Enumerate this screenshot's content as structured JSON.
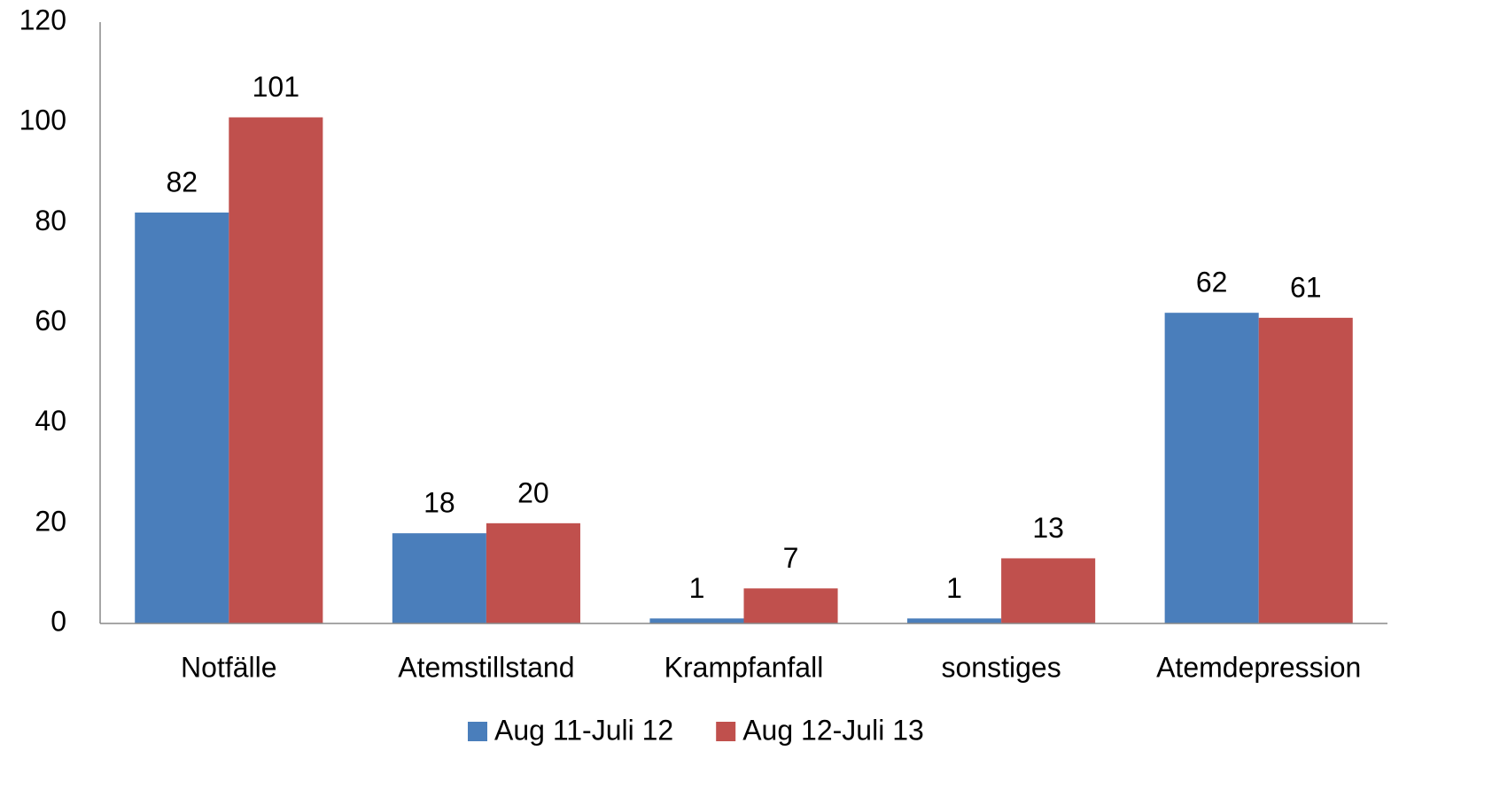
{
  "chart_data": {
    "type": "bar",
    "categories": [
      "Notfälle",
      "Atemstillstand",
      "Krampfanfall",
      "sonstiges",
      "Atemdepression"
    ],
    "series": [
      {
        "name": "Aug 11-Juli 12",
        "color": "#4a7ebb",
        "values": [
          82,
          18,
          1,
          1,
          62
        ]
      },
      {
        "name": "Aug 12-Juli 13",
        "color": "#c0504d",
        "values": [
          101,
          20,
          7,
          13,
          61
        ]
      }
    ],
    "ylim": [
      0,
      120
    ],
    "yticks": [
      0,
      20,
      40,
      60,
      80,
      100,
      120
    ],
    "grid": false,
    "legend": "bottom"
  }
}
